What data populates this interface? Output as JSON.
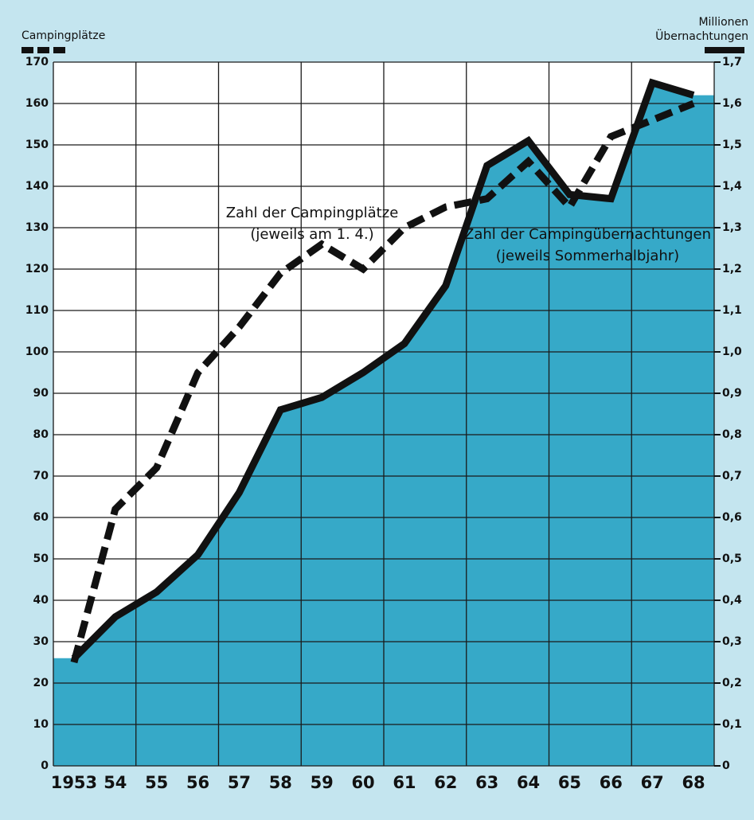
{
  "chart_data": {
    "type": "line",
    "ylabel": "Campingplätze",
    "y2label": [
      "Millionen",
      "Übernachtungen"
    ],
    "categories": [
      "1953",
      "54",
      "55",
      "56",
      "57",
      "58",
      "59",
      "60",
      "61",
      "62",
      "63",
      "64",
      "65",
      "66",
      "67",
      "68"
    ],
    "series": [
      {
        "name": "Zahl der Campingplätze",
        "note": "(jeweils am 1. 4.)",
        "color": "#111111",
        "style": "dashed",
        "axis": "y",
        "values": [
          25,
          62,
          72,
          95,
          106,
          119,
          126,
          120,
          130,
          135,
          137,
          146,
          135,
          152,
          156,
          160
        ]
      },
      {
        "name": "Zahl der Campingübernachtungen",
        "note": "(jeweils Sommerhalbjahr)",
        "color": "#111111",
        "style": "solid",
        "axis": "y2",
        "fill": "#36a9c8",
        "values": [
          0.26,
          0.36,
          0.42,
          0.51,
          0.66,
          0.86,
          0.89,
          0.95,
          1.02,
          1.16,
          1.45,
          1.51,
          1.38,
          1.37,
          1.65,
          1.62
        ]
      }
    ],
    "ylim": [
      0,
      170
    ],
    "yticks": [
      0,
      10,
      20,
      30,
      40,
      50,
      60,
      70,
      80,
      90,
      100,
      110,
      120,
      130,
      140,
      150,
      160,
      170
    ],
    "y2lim": [
      0,
      1.7
    ],
    "y2ticks": [
      0,
      {
        "value": 0.1,
        "label": "0,1"
      },
      {
        "value": 0.2,
        "label": "0,2"
      },
      {
        "value": 0.3,
        "label": "0,3"
      },
      {
        "value": 0.4,
        "label": "0,4"
      },
      {
        "value": 0.5,
        "label": "0,5"
      },
      {
        "value": 0.6,
        "label": "0,6"
      },
      {
        "value": 0.7,
        "label": "0,7"
      },
      {
        "value": 0.8,
        "label": "0,8"
      },
      {
        "value": 0.9,
        "label": "0,9"
      },
      {
        "value": 1,
        "label": "1,0"
      },
      {
        "value": 1.1,
        "label": "1,1"
      },
      {
        "value": 1.2,
        "label": "1,2"
      },
      {
        "value": 1.3,
        "label": "1,3"
      },
      {
        "value": 1.4,
        "label": "1,4"
      },
      {
        "value": 1.5,
        "label": "1,5"
      },
      {
        "value": 1.6,
        "label": "1,6"
      },
      {
        "value": 1.7,
        "label": "1,7"
      }
    ],
    "grid": true
  }
}
